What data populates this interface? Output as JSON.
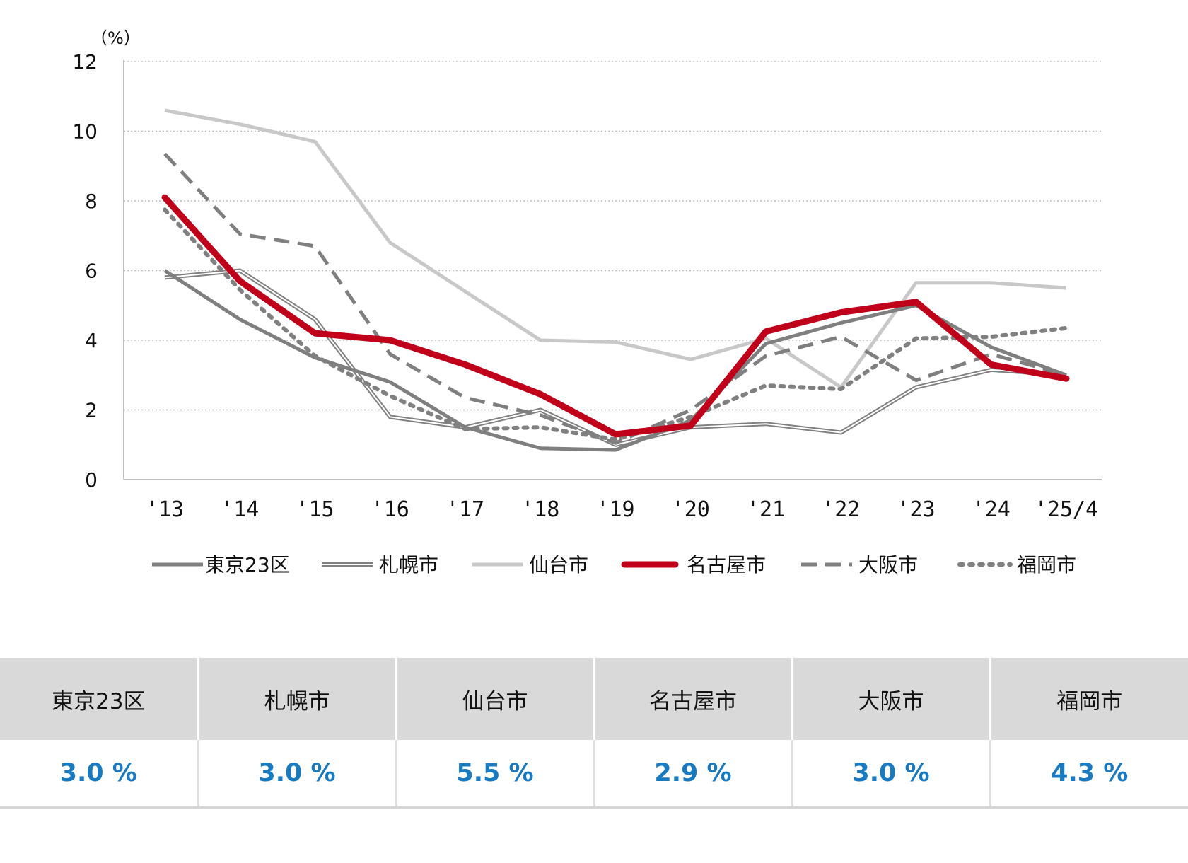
{
  "chart_data": {
    "type": "line",
    "unit_label": "（%）",
    "ylim": [
      0,
      12
    ],
    "yticks": [
      "0",
      "2",
      "4",
      "6",
      "8",
      "10",
      "12"
    ],
    "categories": [
      "'13",
      "'14",
      "'15",
      "'16",
      "'17",
      "'18",
      "'19",
      "'20",
      "'21",
      "'22",
      "'23",
      "'24",
      "'25/4"
    ],
    "grid": "horizontal dotted",
    "legend_position": "bottom",
    "series": [
      {
        "name": "東京23区",
        "color": "#7f7f7f",
        "style": "solid",
        "values": [
          6.0,
          4.6,
          3.5,
          2.8,
          1.5,
          0.9,
          0.85,
          1.7,
          3.9,
          4.5,
          5.0,
          3.8,
          3.0
        ]
      },
      {
        "name": "札幌市",
        "color": "#808080",
        "style": "double",
        "values": [
          5.8,
          6.0,
          4.6,
          1.8,
          1.5,
          2.0,
          1.0,
          1.5,
          1.6,
          1.35,
          2.65,
          3.15,
          3.0
        ]
      },
      {
        "name": "仙台市",
        "color": "#c8c8c8",
        "style": "solid",
        "values": [
          10.6,
          10.2,
          9.7,
          6.8,
          5.4,
          4.0,
          3.95,
          3.45,
          4.05,
          2.65,
          5.65,
          5.65,
          5.5
        ]
      },
      {
        "name": "名古屋市",
        "color": "#c0001a",
        "style": "solid-bold",
        "values": [
          8.1,
          5.7,
          4.2,
          4.0,
          3.3,
          2.45,
          1.3,
          1.55,
          4.25,
          4.8,
          5.1,
          3.3,
          2.9
        ]
      },
      {
        "name": "大阪市",
        "color": "#7f7f7f",
        "style": "dashed",
        "values": [
          9.35,
          7.05,
          6.7,
          3.6,
          2.35,
          1.85,
          1.05,
          2.0,
          3.55,
          4.1,
          2.85,
          3.6,
          3.0
        ]
      },
      {
        "name": "福岡市",
        "color": "#808080",
        "style": "dotted",
        "values": [
          7.75,
          5.45,
          3.55,
          2.4,
          1.45,
          1.5,
          1.15,
          1.8,
          2.7,
          2.6,
          4.05,
          4.1,
          4.35
        ]
      }
    ]
  },
  "table": {
    "headers": [
      "東京23区",
      "札幌市",
      "仙台市",
      "名古屋市",
      "大阪市",
      "福岡市"
    ],
    "values": [
      "3.0 %",
      "3.0 %",
      "5.5 %",
      "2.9 %",
      "3.0 %",
      "4.3 %"
    ]
  }
}
